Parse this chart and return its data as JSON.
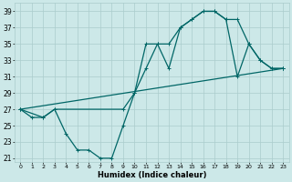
{
  "xlabel": "Humidex (Indice chaleur)",
  "background_color": "#cce8e8",
  "grid_color": "#aacccc",
  "line_color": "#006666",
  "xlim": [
    -0.5,
    23.5
  ],
  "ylim": [
    20.5,
    40.0
  ],
  "yticks": [
    21,
    23,
    25,
    27,
    29,
    31,
    33,
    35,
    37,
    39
  ],
  "xticks": [
    0,
    1,
    2,
    3,
    4,
    5,
    6,
    7,
    8,
    9,
    10,
    11,
    12,
    13,
    14,
    15,
    16,
    17,
    18,
    19,
    20,
    21,
    22,
    23
  ],
  "line1_x": [
    0,
    1,
    2,
    3,
    4,
    5,
    6,
    7,
    8,
    9,
    10,
    11,
    12,
    13,
    14,
    15,
    16,
    17,
    18,
    19,
    20,
    21,
    22,
    23
  ],
  "line1_y": [
    27,
    26,
    26,
    27,
    24,
    22,
    22,
    21,
    21,
    25,
    29,
    35,
    35,
    32,
    37,
    38,
    39,
    39,
    38,
    38,
    35,
    33,
    32,
    32
  ],
  "line2_x": [
    0,
    2,
    3,
    9,
    10,
    11,
    12,
    13,
    14,
    15,
    16,
    17,
    18,
    19,
    20,
    21,
    22,
    23
  ],
  "line2_y": [
    27,
    26,
    27,
    27,
    29,
    32,
    35,
    35,
    37,
    38,
    39,
    39,
    38,
    31,
    35,
    33,
    32,
    32
  ],
  "line3_x": [
    0,
    23
  ],
  "line3_y": [
    27,
    32
  ]
}
